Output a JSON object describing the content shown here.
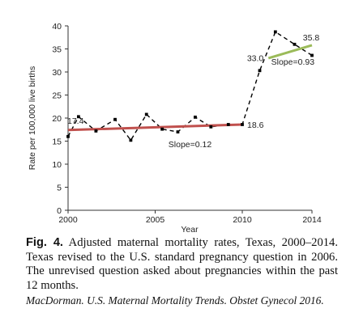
{
  "chart_data": {
    "type": "line",
    "xlabel": "Year",
    "ylabel": "Rate per 100,000 live births",
    "xlim": [
      2000,
      2014
    ],
    "ylim": [
      0,
      40
    ],
    "x_ticks": [
      2000,
      2005,
      2010,
      2014
    ],
    "y_ticks": [
      0,
      5,
      10,
      15,
      20,
      25,
      30,
      35,
      40
    ],
    "grid": false,
    "series": [
      {
        "style": "dashed",
        "color": "#000000",
        "x": [
          2000,
          2000.6,
          2001.6,
          2002.7,
          2003.6,
          2004.5,
          2005.4,
          2006.3,
          2007.3,
          2008.2,
          2009.2,
          2010.0,
          2011.0,
          2011.9,
          2013.0,
          2014.0
        ],
        "y": [
          16.0,
          20.3,
          17.2,
          19.7,
          15.2,
          20.8,
          17.6,
          17.0,
          20.2,
          18.1,
          18.6,
          18.6,
          30.3,
          38.7,
          36.0,
          33.6
        ]
      },
      {
        "style": "trend",
        "color": "#c0504d",
        "x": [
          2000,
          2010
        ],
        "y": [
          17.4,
          18.6
        ]
      },
      {
        "style": "trend",
        "color": "#9bbb59",
        "x": [
          2011.5,
          2014
        ],
        "y": [
          33.0,
          35.8
        ]
      }
    ],
    "annotations": [
      {
        "id": "start",
        "text": "17.4"
      },
      {
        "id": "end2010",
        "text": "18.6"
      },
      {
        "id": "slope1",
        "text": "Slope=0.12"
      },
      {
        "id": "start2",
        "text": "33.0"
      },
      {
        "id": "end2014",
        "text": "35.8"
      },
      {
        "id": "slope2",
        "text": "Slope=0.93"
      }
    ]
  },
  "caption": {
    "label": "Fig. 4.",
    "text": " Adjusted maternal mortality rates, Texas, 2000–2014. Texas revised to the U.S. standard pregnancy question in 2006. The unrevised question asked about pregnancies within the past 12 months."
  },
  "citation": "MacDorman. U.S. Maternal Mortality Trends. Obstet Gynecol 2016."
}
